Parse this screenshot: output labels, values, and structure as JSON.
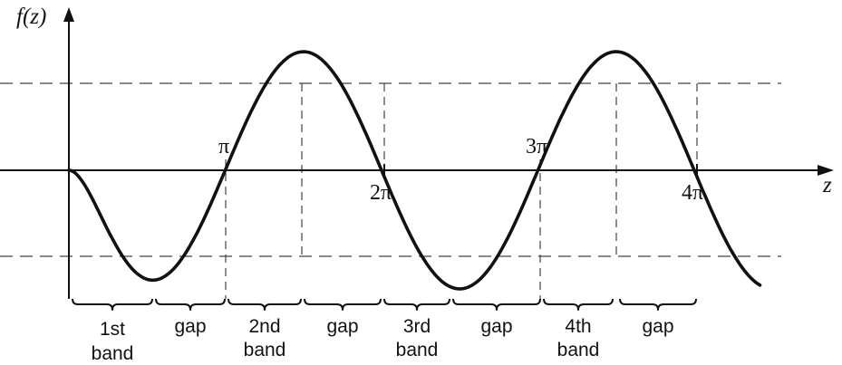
{
  "diagram": {
    "y_axis_label": "f(z)",
    "x_axis_label": "z",
    "tick_labels": {
      "pi": "π",
      "two_pi": "2π",
      "three_pi": "3π",
      "four_pi": "4π"
    },
    "regions": [
      {
        "line1": "1st",
        "line2": "band"
      },
      {
        "line1": "gap",
        "line2": ""
      },
      {
        "line1": "2nd",
        "line2": "band"
      },
      {
        "line1": "gap",
        "line2": ""
      },
      {
        "line1": "3rd",
        "line2": "band"
      },
      {
        "line1": "gap",
        "line2": ""
      },
      {
        "line1": "4th",
        "line2": "band"
      },
      {
        "line1": "gap",
        "line2": ""
      }
    ]
  }
}
